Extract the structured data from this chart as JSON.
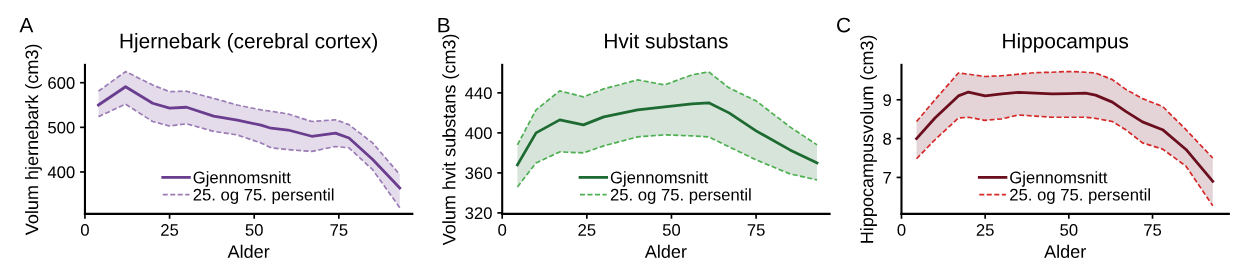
{
  "chart_data": [
    {
      "type": "line",
      "title": "Hjernebark (cerebral cortex)",
      "xlabel": "Alder",
      "ylabel": "Volum hjernebark (cm3)",
      "annotations": [
        "A"
      ],
      "xlim": [
        0,
        96.7
      ],
      "xticks": [
        0,
        25,
        50,
        75
      ],
      "ylim": [
        306,
        640
      ],
      "yticks": [
        400,
        500,
        600
      ],
      "grid": false,
      "legend": "bottom",
      "x": [
        4,
        12,
        20,
        25,
        30,
        38,
        45,
        52,
        55,
        60,
        67,
        74,
        78,
        85,
        93
      ],
      "series": [
        {
          "name": "Gjennomsnitt",
          "color": "#6a3d8f",
          "line_style": "solid",
          "values": [
            550,
            591,
            554,
            543,
            545,
            525,
            516,
            505,
            498,
            494,
            480,
            487,
            476,
            428,
            364
          ],
          "upper": [
            581,
            625,
            595,
            580,
            581,
            565,
            550,
            539,
            536,
            530,
            513,
            517,
            506,
            465,
            394
          ],
          "lower": [
            524,
            552,
            513,
            503,
            508,
            491,
            483,
            465,
            454,
            450,
            446,
            457,
            454,
            405,
            320
          ]
        },
        {
          "name": "25. og 75. persentil",
          "color": "#9a7bb5",
          "line_style": "dashed",
          "values": [
            581,
            625,
            595,
            580,
            581,
            565,
            550,
            539,
            536,
            530,
            513,
            517,
            506,
            465,
            394
          ]
        },
        {
          "color": "#9a7bb5",
          "line_style": "dashed",
          "values": [
            524,
            552,
            513,
            503,
            508,
            491,
            483,
            465,
            454,
            450,
            446,
            457,
            454,
            405,
            320
          ]
        }
      ]
    },
    {
      "type": "line",
      "title": "Hvit substans",
      "xlabel": "Alder",
      "ylabel": "Volum hvit substans (cm3)",
      "annotations": [
        "B"
      ],
      "xlim": [
        0,
        96.7
      ],
      "xticks": [
        0,
        25,
        50,
        75
      ],
      "ylim": [
        319,
        468
      ],
      "yticks": [
        320,
        360,
        400,
        440
      ],
      "grid": false,
      "legend": "bottom",
      "x": [
        4.5,
        10,
        17,
        24,
        30,
        40,
        48,
        56,
        61,
        67,
        75,
        85,
        93
      ],
      "series": [
        {
          "name": "Gjennomsnitt",
          "color": "#1e6b32",
          "line_style": "solid",
          "values": [
            368,
            400,
            413,
            408,
            416,
            423,
            426,
            429,
            430,
            420,
            402,
            383,
            370
          ],
          "upper": [
            388,
            423,
            442,
            436,
            444,
            453,
            448,
            458,
            461,
            445,
            432,
            406,
            388
          ],
          "lower": [
            346,
            370,
            381,
            380,
            387,
            396,
            398,
            397,
            396,
            386,
            373,
            359,
            353
          ]
        },
        {
          "name": "25. og 75. persentil",
          "color": "#4caf50",
          "line_style": "dashed",
          "values": [
            388,
            423,
            442,
            436,
            444,
            453,
            448,
            458,
            461,
            445,
            432,
            406,
            388
          ]
        },
        {
          "color": "#4caf50",
          "line_style": "dashed",
          "values": [
            346,
            370,
            381,
            380,
            387,
            396,
            398,
            397,
            396,
            386,
            373,
            359,
            353
          ]
        }
      ]
    },
    {
      "type": "line",
      "title": "Hippocampus",
      "xlabel": "Alder",
      "ylabel": "Hippocampusvolum (cm3)",
      "annotations": [
        "C"
      ],
      "xlim": [
        0,
        97.8
      ],
      "xticks": [
        0,
        25,
        50,
        75
      ],
      "ylim": [
        6.06,
        9.9
      ],
      "yticks": [
        7,
        8,
        9
      ],
      "grid": false,
      "legend": "bottom",
      "x": [
        4.5,
        10,
        17,
        20,
        25,
        30,
        35,
        40,
        45,
        50,
        55,
        58,
        63,
        67,
        72,
        78,
        85,
        93
      ],
      "series": [
        {
          "name": "Gjennomsnitt",
          "color": "#6b0f1f",
          "line_style": "solid",
          "values": [
            8.0,
            8.53,
            9.1,
            9.2,
            9.1,
            9.15,
            9.19,
            9.17,
            9.15,
            9.16,
            9.17,
            9.12,
            8.94,
            8.7,
            8.43,
            8.23,
            7.72,
            6.9
          ],
          "upper": [
            8.44,
            9.0,
            9.69,
            9.66,
            9.6,
            9.62,
            9.66,
            9.7,
            9.71,
            9.73,
            9.71,
            9.69,
            9.52,
            9.27,
            9.03,
            8.83,
            8.23,
            7.5
          ],
          "lower": [
            7.48,
            7.97,
            8.53,
            8.55,
            8.47,
            8.51,
            8.61,
            8.58,
            8.55,
            8.55,
            8.55,
            8.52,
            8.44,
            8.23,
            7.89,
            7.73,
            7.29,
            6.27
          ]
        },
        {
          "name": "25. og 75. persentil",
          "color": "#d62828",
          "line_style": "dashed",
          "values": [
            8.44,
            9.0,
            9.69,
            9.66,
            9.6,
            9.62,
            9.66,
            9.7,
            9.71,
            9.73,
            9.71,
            9.69,
            9.52,
            9.27,
            9.03,
            8.83,
            8.23,
            7.5
          ]
        },
        {
          "color": "#d62828",
          "line_style": "dashed",
          "values": [
            7.48,
            7.97,
            8.53,
            8.55,
            8.47,
            8.51,
            8.61,
            8.58,
            8.55,
            8.55,
            8.55,
            8.52,
            8.44,
            8.23,
            7.89,
            7.73,
            7.29,
            6.27
          ]
        }
      ]
    }
  ]
}
